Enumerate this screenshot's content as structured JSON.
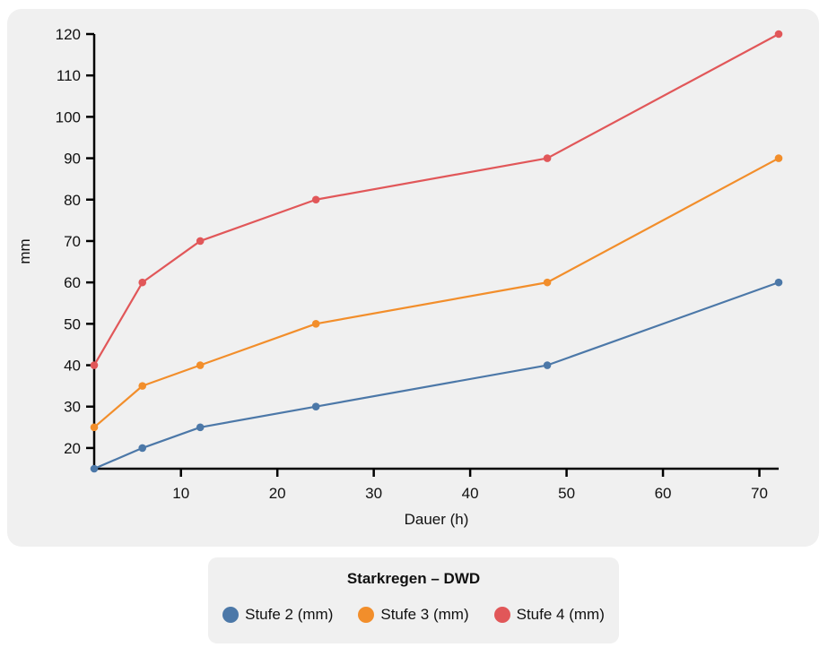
{
  "style": {
    "page_bg": "#ffffff",
    "card_bg": "#f0f0f0",
    "axis_color": "#000000",
    "text_color": "#111111"
  },
  "chart_data": {
    "type": "line",
    "title": "Starkregen – DWD",
    "xlabel": "Dauer (h)",
    "ylabel": "mm",
    "x": [
      1,
      6,
      12,
      24,
      48,
      72
    ],
    "series": [
      {
        "name": "Stufe 2 (mm)",
        "color": "#4c78a8",
        "values": [
          15,
          20,
          25,
          30,
          40,
          60
        ]
      },
      {
        "name": "Stufe 3 (mm)",
        "color": "#f28e2b",
        "values": [
          25,
          35,
          40,
          50,
          60,
          90
        ]
      },
      {
        "name": "Stufe 4 (mm)",
        "color": "#e15759",
        "values": [
          40,
          60,
          70,
          80,
          90,
          120
        ]
      }
    ],
    "xlim": [
      1,
      72
    ],
    "ylim": [
      15,
      120
    ],
    "xticks": [
      10,
      20,
      30,
      40,
      50,
      60,
      70
    ],
    "yticks": [
      20,
      30,
      40,
      50,
      60,
      70,
      80,
      90,
      100,
      110,
      120
    ],
    "grid": false,
    "marker": "circle",
    "legend_position": "bottom"
  }
}
